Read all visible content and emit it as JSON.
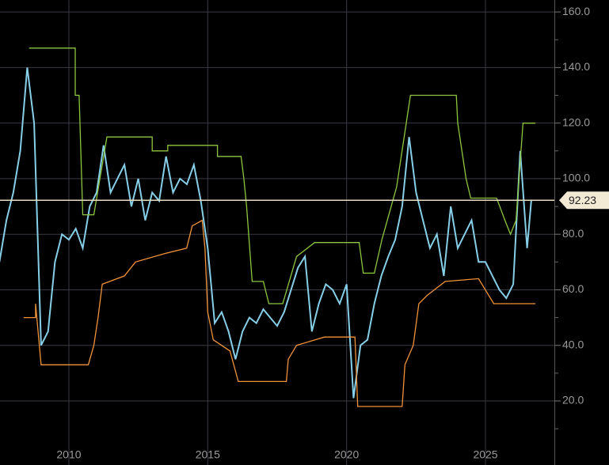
{
  "chart_data": {
    "type": "line",
    "xlim": [
      2007.52,
      2027.48
    ],
    "ylim": [
      -3.05,
      164.3
    ],
    "xticks": [
      2010,
      2015,
      2020,
      2025
    ],
    "yticks": [
      {
        "value": 20,
        "label": "20.0"
      },
      {
        "value": 40,
        "label": "40.0"
      },
      {
        "value": 60,
        "label": "60.0"
      },
      {
        "value": 80,
        "label": "80.0"
      },
      {
        "value": 100,
        "label": "100.0"
      },
      {
        "value": 120,
        "label": "120.0"
      },
      {
        "value": 140,
        "label": "140.0"
      },
      {
        "value": 160,
        "label": "160.0"
      }
    ],
    "yminorticks": [
      10,
      30,
      50,
      70,
      90,
      110,
      130,
      150
    ],
    "grid": true,
    "last_value": 92.23,
    "series": [
      {
        "color": "#87cfe8",
        "x": [
          2007.5,
          2007.75,
          2008.0,
          2008.25,
          2008.5,
          2008.75,
          2009.0,
          2009.25,
          2009.5,
          2009.75,
          2010.0,
          2010.25,
          2010.5,
          2010.75,
          2011.0,
          2011.25,
          2011.5,
          2011.75,
          2012.0,
          2012.25,
          2012.5,
          2012.75,
          2013.0,
          2013.25,
          2013.5,
          2013.75,
          2014.0,
          2014.25,
          2014.5,
          2014.75,
          2015.0,
          2015.25,
          2015.5,
          2015.75,
          2016.0,
          2016.25,
          2016.5,
          2016.75,
          2017.0,
          2017.25,
          2017.5,
          2017.75,
          2018.0,
          2018.25,
          2018.5,
          2018.75,
          2019.0,
          2019.25,
          2019.5,
          2019.75,
          2020.0,
          2020.25,
          2020.5,
          2020.75,
          2021.0,
          2021.25,
          2021.5,
          2021.75,
          2022.0,
          2022.25,
          2022.5,
          2022.75,
          2023.0,
          2023.25,
          2023.5,
          2023.75,
          2024.0,
          2024.25,
          2024.5,
          2024.75,
          2025.0,
          2025.25,
          2025.5,
          2025.75,
          2026.0,
          2026.25,
          2026.5,
          2026.65
        ],
        "values": [
          70,
          85,
          95,
          110,
          140,
          120,
          40,
          45,
          70,
          80,
          78,
          82,
          75,
          90,
          95,
          112,
          95,
          100,
          105,
          90,
          100,
          85,
          95,
          92,
          108,
          95,
          100,
          98,
          105,
          92,
          75,
          48,
          52,
          45,
          35,
          45,
          50,
          48,
          53,
          50,
          47,
          52,
          60,
          68,
          72,
          45,
          55,
          62,
          60,
          55,
          62,
          21,
          40,
          42,
          55,
          65,
          72,
          78,
          90,
          115,
          95,
          85,
          75,
          80,
          65,
          90,
          75,
          80,
          85,
          70,
          70,
          65,
          60,
          57,
          62,
          110,
          75,
          92.23
        ]
      },
      {
        "color": "#8dc63f",
        "x": [
          2008.57,
          2010.23,
          2010.23,
          2010.37,
          2010.5,
          2010.9,
          2011.37,
          2013.0,
          2013.0,
          2013.56,
          2013.56,
          2015.35,
          2015.35,
          2016.2,
          2016.3,
          2016.4,
          2016.6,
          2017.0,
          2017.2,
          2017.7,
          2018.2,
          2018.85,
          2020.45,
          2020.6,
          2021.0,
          2021.27,
          2021.8,
          2022.3,
          2023.95,
          2024.0,
          2024.3,
          2024.47,
          2025.4,
          2025.7,
          2025.9,
          2026.1,
          2026.35,
          2026.8
        ],
        "values": [
          147,
          147,
          130,
          130,
          87,
          87,
          115,
          115,
          110,
          110,
          112,
          112,
          108,
          108,
          100,
          90,
          63,
          63,
          55,
          55,
          72,
          77,
          77,
          66,
          66,
          78,
          97,
          130,
          130,
          120,
          100,
          93,
          93,
          85,
          80,
          85,
          120,
          120
        ]
      },
      {
        "color": "#f0923a",
        "x": [
          2008.37,
          2008.8,
          2008.8,
          2009.0,
          2010.7,
          2010.9,
          2011.05,
          2011.2,
          2012.0,
          2012.4,
          2013.44,
          2014.24,
          2014.44,
          2014.8,
          2014.9,
          2015.0,
          2015.2,
          2015.8,
          2016.1,
          2017.83,
          2017.9,
          2018.2,
          2019.2,
          2020.3,
          2020.4,
          2022.0,
          2022.1,
          2022.4,
          2022.6,
          2022.9,
          2023.55,
          2024.75,
          2025.3,
          2026.8
        ],
        "values": [
          50,
          50,
          55,
          33,
          33,
          40,
          50,
          62,
          65,
          70,
          73,
          75,
          83,
          85,
          75,
          52,
          42,
          38,
          27,
          27,
          35,
          40,
          43,
          43,
          18,
          18,
          33,
          40,
          55,
          58,
          63,
          64,
          55,
          55
        ]
      }
    ]
  }
}
